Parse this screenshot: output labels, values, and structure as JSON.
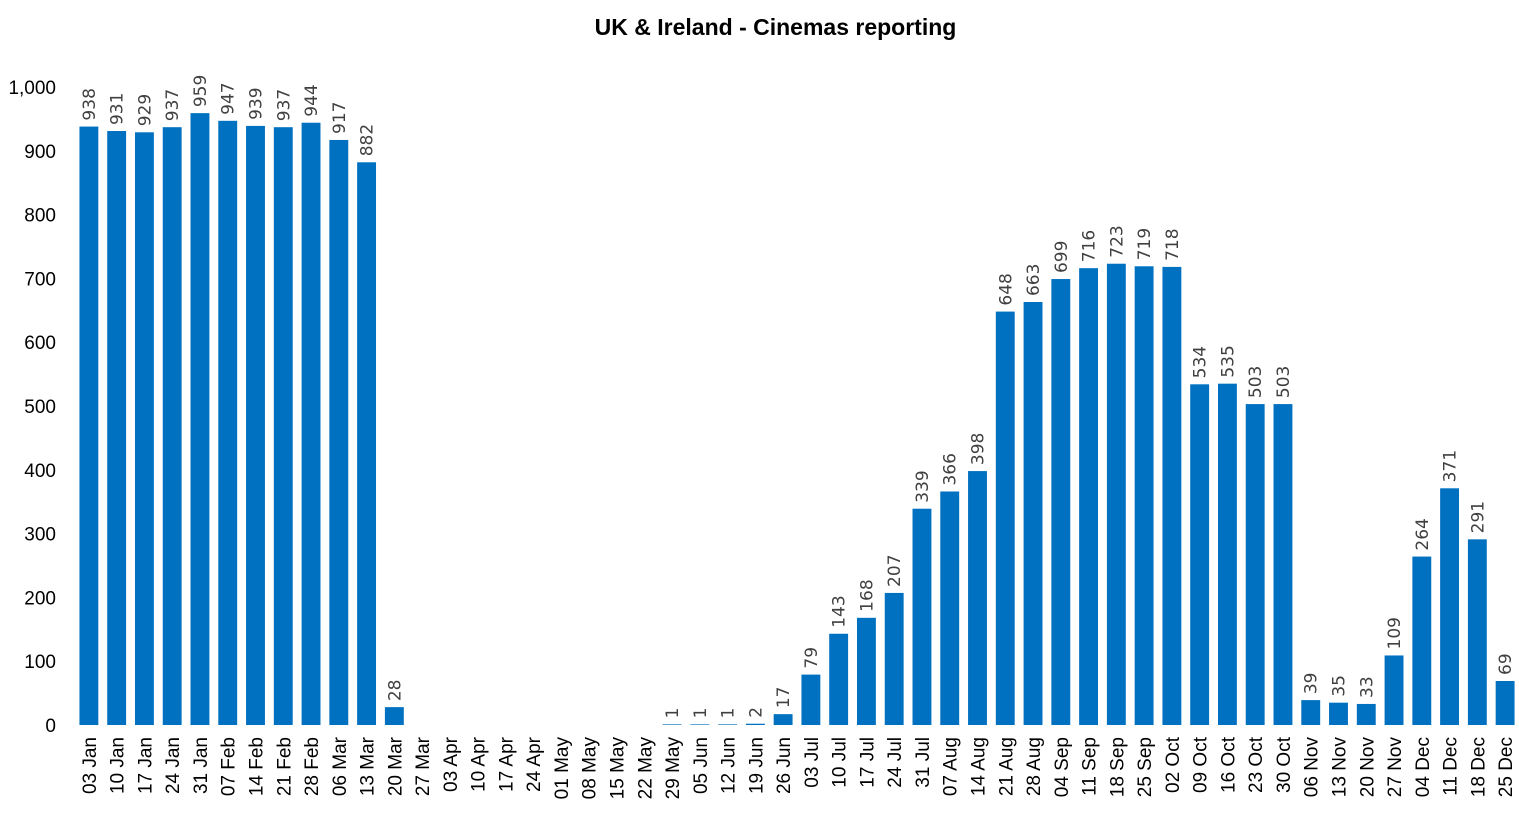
{
  "chart_data": {
    "type": "bar",
    "title": "UK & Ireland - Cinemas reporting",
    "xlabel": "",
    "ylabel": "",
    "ylim": [
      0,
      1000
    ],
    "yticks": [
      0,
      100,
      200,
      300,
      400,
      500,
      600,
      700,
      800,
      900,
      1000
    ],
    "ytick_labels": [
      "0",
      "100",
      "200",
      "300",
      "400",
      "500",
      "600",
      "700",
      "800",
      "900",
      "1,000"
    ],
    "grid": false,
    "legend": "none",
    "bar_color": "#0070c0",
    "categories": [
      "03 Jan",
      "10 Jan",
      "17 Jan",
      "24 Jan",
      "31 Jan",
      "07 Feb",
      "14 Feb",
      "21 Feb",
      "28 Feb",
      "06 Mar",
      "13 Mar",
      "20 Mar",
      "27 Mar",
      "03 Apr",
      "10 Apr",
      "17 Apr",
      "24 Apr",
      "01 May",
      "08 May",
      "15 May",
      "22 May",
      "29 May",
      "05 Jun",
      "12 Jun",
      "19 Jun",
      "26 Jun",
      "03 Jul",
      "10 Jul",
      "17 Jul",
      "24 Jul",
      "31 Jul",
      "07 Aug",
      "14 Aug",
      "21 Aug",
      "28 Aug",
      "04 Sep",
      "11 Sep",
      "18 Sep",
      "25 Sep",
      "02 Oct",
      "09 Oct",
      "16 Oct",
      "23 Oct",
      "30 Oct",
      "06 Nov",
      "13 Nov",
      "20 Nov",
      "27 Nov",
      "04 Dec",
      "11 Dec",
      "18 Dec",
      "25 Dec"
    ],
    "values": [
      938,
      931,
      929,
      937,
      959,
      947,
      939,
      937,
      944,
      917,
      882,
      28,
      null,
      null,
      null,
      null,
      null,
      null,
      null,
      null,
      null,
      1,
      1,
      1,
      2,
      17,
      79,
      143,
      168,
      207,
      339,
      366,
      398,
      648,
      663,
      699,
      716,
      723,
      719,
      718,
      534,
      535,
      503,
      503,
      39,
      35,
      33,
      109,
      264,
      371,
      291,
      69
    ]
  }
}
